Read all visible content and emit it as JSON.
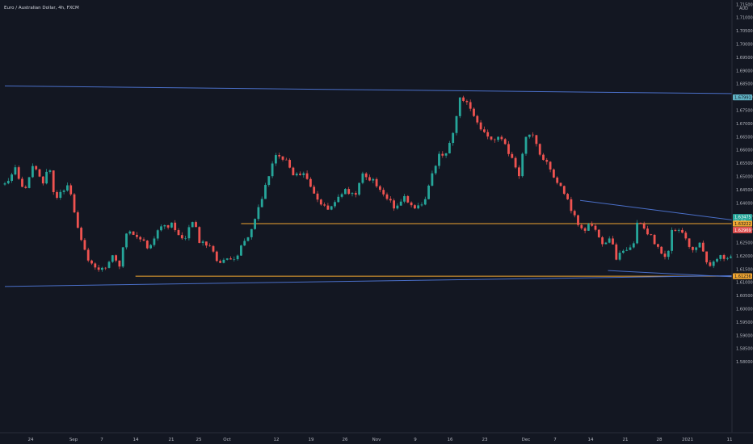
{
  "chart_data": {
    "type": "candlestick",
    "title": "Euro / Australian Dollar, 4h, FXCM",
    "currency": "AUD",
    "y_ticks": [
      "1.71500",
      "1.71000",
      "1.70500",
      "1.70000",
      "1.69500",
      "1.69000",
      "1.68500",
      "1.68000",
      "1.67500",
      "1.67000",
      "1.66500",
      "1.66000",
      "1.65500",
      "1.65000",
      "1.64500",
      "1.64000",
      "1.63500",
      "1.63000",
      "1.62500",
      "1.62000",
      "1.61500",
      "1.61000",
      "1.60500",
      "1.60000",
      "1.59500",
      "1.59000",
      "1.58500",
      "1.58000"
    ],
    "x_ticks": [
      "24",
      "Sep",
      "7",
      "14",
      "21",
      "25",
      "Oct",
      "12",
      "19",
      "26",
      "Nov",
      "9",
      "16",
      "23",
      "Dec",
      "7",
      "14",
      "21",
      "28",
      "2021",
      "11"
    ],
    "ylim": [
      1.5775,
      1.7165
    ],
    "price_badges": [
      {
        "label": "1.67991",
        "price": 1.67991,
        "color": "#5fb2c4",
        "text_color": "#131722"
      },
      {
        "label": "1.63475",
        "price": 1.63475,
        "color": "#26a69a",
        "text_color": "#ffffff"
      },
      {
        "label": "01:59",
        "price": 1.633,
        "color": "#26a69a",
        "text_color": "#ffffff"
      },
      {
        "label": "1.63222",
        "price": 1.63222,
        "color": "#f0a530",
        "text_color": "#131722"
      },
      {
        "label": "1.62991",
        "price": 1.62991,
        "color": "#e05050",
        "text_color": "#ffffff"
      },
      {
        "label": "1.62969",
        "price": 1.62969,
        "color": "#e05050",
        "text_color": "#ffffff"
      },
      {
        "label": "1.61236",
        "price": 1.61236,
        "color": "#f0a530",
        "text_color": "#131722"
      }
    ],
    "horizontal_lines": [
      {
        "price": 1.63222,
        "from_day": 8.5,
        "color": "#f0a530"
      },
      {
        "price": 1.61236,
        "from_day": 4.7,
        "color": "#f0a530"
      }
    ],
    "trendlines": [
      {
        "from": [
          0,
          1.6842
        ],
        "to": [
          33.7,
          1.6805
        ],
        "color": "#4a6fc8"
      },
      {
        "from": [
          0,
          1.6085
        ],
        "to": [
          26.3,
          1.6126
        ],
        "color": "#4a6fc8"
      },
      {
        "from": [
          20.7,
          1.641
        ],
        "to": [
          27.0,
          1.6325
        ],
        "color": "#4a6fc8"
      },
      {
        "from": [
          21.7,
          1.6145
        ],
        "to": [
          27.0,
          1.6117
        ],
        "color": "#4a6fc8"
      },
      {
        "from": [
          27.3,
          1.643
        ],
        "to": [
          29.0,
          1.6405
        ],
        "color": "#4a6fc8"
      }
    ],
    "position_box": {
      "from_day": 28.5,
      "to_day": 29.7,
      "entry": 1.6336,
      "target": 1.6799,
      "stop": 1.6321
    },
    "anchors": [
      [
        0,
        1.647
      ],
      [
        0.35,
        1.653
      ],
      [
        0.7,
        1.645
      ],
      [
        1.0,
        1.654
      ],
      [
        1.4,
        1.648
      ],
      [
        1.6,
        1.654
      ],
      [
        1.8,
        1.642
      ],
      [
        2.3,
        1.646
      ],
      [
        2.7,
        1.628
      ],
      [
        3.0,
        1.618
      ],
      [
        3.5,
        1.615
      ],
      [
        3.9,
        1.62
      ],
      [
        4.1,
        1.616
      ],
      [
        4.4,
        1.629
      ],
      [
        4.7,
        1.628
      ],
      [
        5.2,
        1.623
      ],
      [
        5.6,
        1.631
      ],
      [
        6.0,
        1.632
      ],
      [
        6.4,
        1.626
      ],
      [
        6.8,
        1.633
      ],
      [
        7.0,
        1.625
      ],
      [
        7.4,
        1.624
      ],
      [
        7.7,
        1.617
      ],
      [
        8.0,
        1.62
      ],
      [
        8.3,
        1.618
      ],
      [
        8.6,
        1.626
      ],
      [
        8.9,
        1.63
      ],
      [
        9.3,
        1.644
      ],
      [
        9.7,
        1.658
      ],
      [
        10.1,
        1.656
      ],
      [
        10.4,
        1.65
      ],
      [
        10.8,
        1.652
      ],
      [
        11.1,
        1.643
      ],
      [
        11.4,
        1.638
      ],
      [
        11.8,
        1.638
      ],
      [
        12.2,
        1.645
      ],
      [
        12.6,
        1.643
      ],
      [
        12.9,
        1.651
      ],
      [
        13.3,
        1.648
      ],
      [
        13.6,
        1.643
      ],
      [
        14.0,
        1.639
      ],
      [
        14.4,
        1.642
      ],
      [
        14.7,
        1.638
      ],
      [
        15.1,
        1.641
      ],
      [
        15.6,
        1.658
      ],
      [
        15.9,
        1.658
      ],
      [
        16.2,
        1.67
      ],
      [
        16.4,
        1.681
      ],
      [
        16.7,
        1.677
      ],
      [
        17.1,
        1.669
      ],
      [
        17.4,
        1.664
      ],
      [
        17.8,
        1.665
      ],
      [
        18.2,
        1.658
      ],
      [
        18.5,
        1.65
      ],
      [
        18.7,
        1.665
      ],
      [
        18.9,
        1.667
      ],
      [
        19.3,
        1.658
      ],
      [
        19.7,
        1.651
      ],
      [
        20.1,
        1.644
      ],
      [
        20.4,
        1.637
      ],
      [
        20.8,
        1.629
      ],
      [
        21.1,
        1.633
      ],
      [
        21.5,
        1.624
      ],
      [
        21.8,
        1.627
      ],
      [
        22.0,
        1.619
      ],
      [
        22.3,
        1.623
      ],
      [
        22.6,
        1.624
      ],
      [
        22.8,
        1.634
      ],
      [
        23.0,
        1.631
      ],
      [
        23.4,
        1.625
      ],
      [
        23.8,
        1.619
      ],
      [
        24.0,
        1.629
      ],
      [
        24.4,
        1.629
      ],
      [
        24.7,
        1.621
      ],
      [
        25.0,
        1.625
      ],
      [
        25.3,
        1.616
      ],
      [
        25.6,
        1.619
      ],
      [
        25.9,
        1.62
      ],
      [
        26.3,
        1.618
      ],
      [
        26.6,
        1.623
      ],
      [
        26.9,
        1.628
      ],
      [
        27.1,
        1.635
      ],
      [
        27.4,
        1.64
      ],
      [
        27.7,
        1.637
      ],
      [
        28.1,
        1.639
      ],
      [
        28.4,
        1.633
      ]
    ]
  }
}
